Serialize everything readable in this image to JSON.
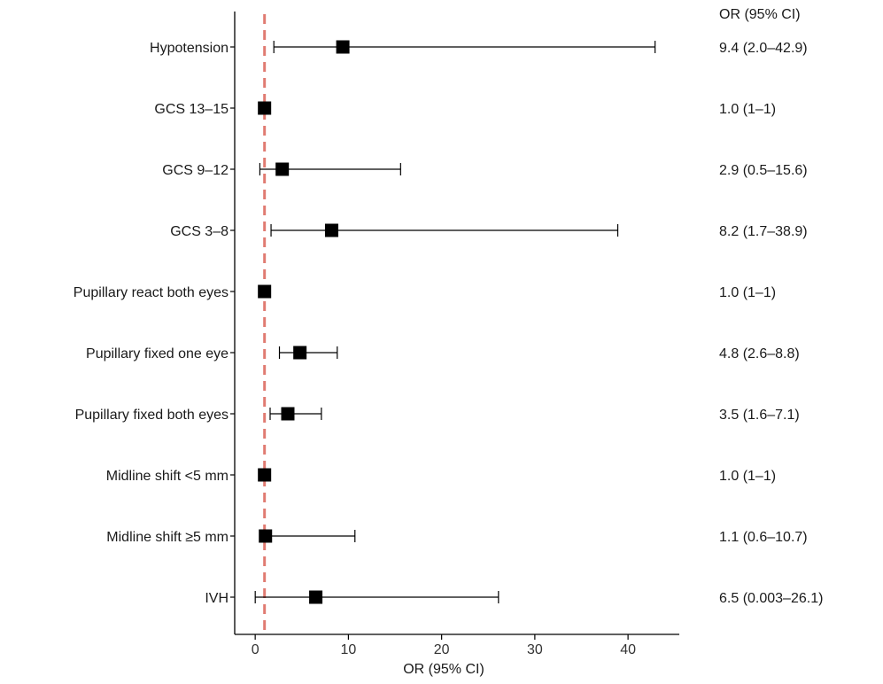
{
  "chart_data": {
    "type": "forest",
    "xlabel": "OR (95% CI)",
    "column_header": "OR (95% CI)",
    "xlim": [
      -2.2,
      45.5
    ],
    "xticks": [
      0,
      10,
      20,
      30,
      40
    ],
    "reference_line": {
      "x": 1,
      "style": "dashed",
      "color": "#e07b72"
    },
    "marker_color": "#000000",
    "grid": false,
    "rows": [
      {
        "label": "Hypotension",
        "or": 9.4,
        "low": 2.0,
        "high": 42.9,
        "ci_text": "9.4 (2.0–42.9)"
      },
      {
        "label": "GCS 13–15",
        "or": 1.0,
        "low": 1,
        "high": 1,
        "ci_text": "1.0 (1–1)"
      },
      {
        "label": "GCS 9–12",
        "or": 2.9,
        "low": 0.5,
        "high": 15.6,
        "ci_text": "2.9 (0.5–15.6)"
      },
      {
        "label": "GCS 3–8",
        "or": 8.2,
        "low": 1.7,
        "high": 38.9,
        "ci_text": "8.2 (1.7–38.9)"
      },
      {
        "label": "Pupillary react both eyes",
        "or": 1.0,
        "low": 1,
        "high": 1,
        "ci_text": "1.0 (1–1)"
      },
      {
        "label": "Pupillary fixed one eye",
        "or": 4.8,
        "low": 2.6,
        "high": 8.8,
        "ci_text": "4.8 (2.6–8.8)"
      },
      {
        "label": "Pupillary fixed both eyes",
        "or": 3.5,
        "low": 1.6,
        "high": 7.1,
        "ci_text": "3.5 (1.6–7.1)"
      },
      {
        "label": "Midline shift <5 mm",
        "or": 1.0,
        "low": 1,
        "high": 1,
        "ci_text": "1.0 (1–1)"
      },
      {
        "label": "Midline shift ≥5 mm",
        "or": 1.1,
        "low": 0.6,
        "high": 10.7,
        "ci_text": "1.1 (0.6–10.7)"
      },
      {
        "label": "IVH",
        "or": 6.5,
        "low": 0.003,
        "high": 26.1,
        "ci_text": "6.5 (0.003–26.1)"
      }
    ]
  }
}
